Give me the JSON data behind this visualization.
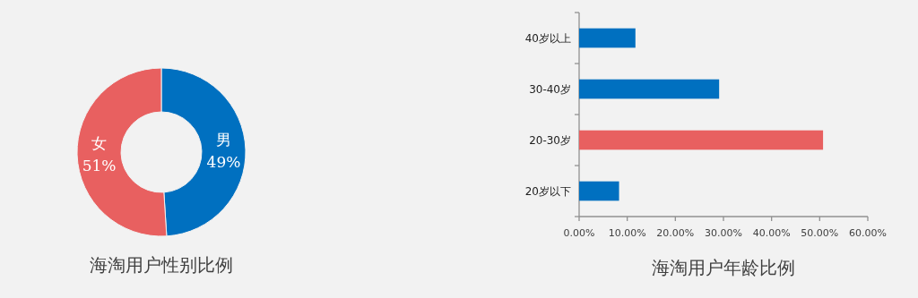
{
  "chart_data": [
    {
      "type": "donut",
      "title": "海淘用户性别比例",
      "categories": [
        "男",
        "女"
      ],
      "values": [
        49,
        51
      ],
      "colors": [
        "#0070c0",
        "#e86060"
      ],
      "value_labels": [
        "49%",
        "51%"
      ]
    },
    {
      "type": "bar",
      "orientation": "horizontal",
      "title": "海淘用户年龄比例",
      "categories": [
        "40岁以上",
        "30-40岁",
        "20-30岁",
        "20岁以下"
      ],
      "values": [
        11.7,
        29.1,
        50.7,
        8.3
      ],
      "colors": [
        "#0070c0",
        "#0070c0",
        "#e86060",
        "#0070c0"
      ],
      "xlim": [
        0,
        60
      ],
      "xticks": [
        {
          "value": 0,
          "label": "0.00%"
        },
        {
          "value": 10,
          "label": "10.00%"
        },
        {
          "value": 20,
          "label": "20.00%"
        },
        {
          "value": 30,
          "label": "30.00%"
        },
        {
          "value": 40,
          "label": "40.00%"
        },
        {
          "value": 50,
          "label": "50.00%"
        },
        {
          "value": 60,
          "label": "60.00%"
        }
      ]
    }
  ]
}
